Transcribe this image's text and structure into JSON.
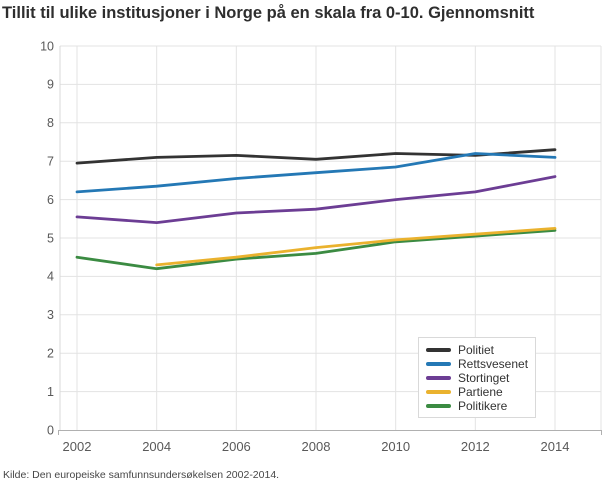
{
  "chart_data": {
    "type": "line",
    "title": "Tillit til ulike institusjoner i Norge på en skala fra 0-10. Gjennomsnitt",
    "source": "Kilde: Den europeiske samfunnsundersøkelsen 2002-2014.",
    "x": [
      2002,
      2004,
      2006,
      2008,
      2010,
      2012,
      2014
    ],
    "x_tick_labels": [
      "2002",
      "2004",
      "2006",
      "2008",
      "2010",
      "2012",
      "2014"
    ],
    "xlabel": "",
    "ylabel": "",
    "ylim": [
      0,
      10
    ],
    "ytick_step": 1,
    "y_tick_labels": [
      "0",
      "1",
      "2",
      "3",
      "4",
      "5",
      "6",
      "7",
      "8",
      "9",
      "10"
    ],
    "grid": true,
    "legend_position": "inside-bottom-right",
    "series": [
      {
        "name": "Politiet",
        "color": "#333333",
        "values": [
          6.95,
          7.1,
          7.15,
          7.05,
          7.2,
          7.15,
          7.3
        ]
      },
      {
        "name": "Rettsvesenet",
        "color": "#2478b5",
        "values": [
          6.2,
          6.35,
          6.55,
          6.7,
          6.85,
          7.2,
          7.1
        ]
      },
      {
        "name": "Stortinget",
        "color": "#6c3d94",
        "values": [
          5.55,
          5.4,
          5.65,
          5.75,
          6.0,
          6.2,
          6.6
        ]
      },
      {
        "name": "Partiene",
        "color": "#eab22e",
        "values": [
          null,
          4.3,
          4.5,
          4.75,
          4.95,
          5.1,
          5.25
        ]
      },
      {
        "name": "Politikere",
        "color": "#3b8b42",
        "values": [
          4.5,
          4.2,
          4.45,
          4.6,
          4.9,
          5.05,
          5.2
        ]
      }
    ],
    "colors": {
      "grid": "#e3e3e3",
      "axis_spine": "#d8d8d8",
      "axis_bottom": "#b0b0b0",
      "tick_label": "#595959",
      "title_text": "#2e2e2e",
      "source_text": "#474747",
      "background": "#ffffff"
    }
  }
}
